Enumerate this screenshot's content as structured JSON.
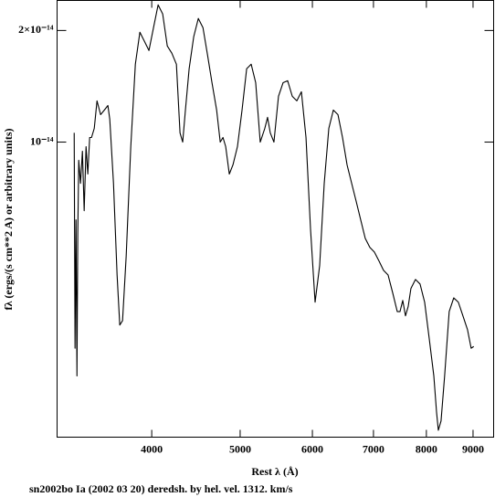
{
  "chart_data": {
    "type": "line",
    "x_label": "Rest λ (Å)",
    "y_label": "fλ (ergs/(s cm**2 A) or arbitrary units)",
    "caption": "sn2002bo Ia (2002 03 20) deredsh. by hel. vel.  1312. km/s",
    "xscale": "log",
    "yscale": "log",
    "xlim": [
      3150,
      9480
    ],
    "ylim": [
      1.6e-15,
      2.41e-14
    ],
    "xticks": [
      4000,
      5000,
      6000,
      7000,
      8000,
      9000
    ],
    "yticks": [
      {
        "value": 1e-14,
        "label": "10⁻¹⁴"
      },
      {
        "value": 2e-14,
        "label": "2×10⁻¹⁴"
      }
    ],
    "color": "#000000",
    "x": [
      3289,
      3296,
      3304,
      3312,
      3319,
      3327,
      3342,
      3358,
      3373,
      3389,
      3404,
      3420,
      3436,
      3460,
      3484,
      3516,
      3549,
      3581,
      3598,
      3632,
      3665,
      3690,
      3716,
      3750,
      3794,
      3838,
      3882,
      3927,
      3972,
      4018,
      4065,
      4112,
      4160,
      4208,
      4257,
      4296,
      4325,
      4355,
      4396,
      4447,
      4499,
      4552,
      4605,
      4657,
      4712,
      4755,
      4788,
      4821,
      4865,
      4910,
      4966,
      5024,
      5083,
      5141,
      5200,
      5260,
      5321,
      5358,
      5395,
      5445,
      5508,
      5572,
      5637,
      5703,
      5769,
      5836,
      5904,
      5972,
      6041,
      6111,
      6182,
      6254,
      6326,
      6400,
      6474,
      6549,
      6625,
      6702,
      6778,
      6856,
      6936,
      7016,
      7098,
      7180,
      7263,
      7348,
      7433,
      7485,
      7537,
      7589,
      7641,
      7694,
      7783,
      7874,
      7965,
      8058,
      8152,
      8208,
      8245,
      8302,
      8377,
      8474,
      8572,
      8672,
      8773,
      8875,
      8957,
      9016
    ],
    "values": [
      1.059e-14,
      2.78e-15,
      6.17e-15,
      2.34e-15,
      5.66e-15,
      8.93e-15,
      7.74e-15,
      9.45e-15,
      6.53e-15,
      9.72e-15,
      8.2e-15,
      1.029e-14,
      1.029e-14,
      1.089e-14,
      1.292e-14,
      1.186e-14,
      1.22e-14,
      1.255e-14,
      1.153e-14,
      7.74e-15,
      4.38e-15,
      3.21e-15,
      3.3e-15,
      4.91e-15,
      9.72e-15,
      1.622e-14,
      1.978e-14,
      1.87e-14,
      1.766e-14,
      2.036e-14,
      2.345e-14,
      2.217e-14,
      1.817e-14,
      1.737e-14,
      1.622e-14,
      1.059e-14,
      1e-14,
      1.22e-14,
      1.577e-14,
      1.923e-14,
      2.155e-14,
      2.036e-14,
      1.717e-14,
      1.446e-14,
      1.22e-14,
      1e-14,
      1.029e-14,
      9.72e-15,
      8.2e-15,
      8.68e-15,
      9.72e-15,
      1.22e-14,
      1.577e-14,
      1.622e-14,
      1.446e-14,
      1e-14,
      1.089e-14,
      1.166e-14,
      1.059e-14,
      1e-14,
      1.329e-14,
      1.446e-14,
      1.464e-14,
      1.329e-14,
      1.292e-14,
      1.367e-14,
      1.029e-14,
      5.82e-15,
      3.7e-15,
      4.64e-15,
      7.74e-15,
      1.089e-14,
      1.22e-14,
      1.186e-14,
      1.029e-14,
      8.68e-15,
      7.74e-15,
      6.91e-15,
      6.17e-15,
      5.5e-15,
      5.2e-15,
      5.05e-15,
      4.78e-15,
      4.51e-15,
      4.38e-15,
      3.92e-15,
      3.49e-15,
      3.49e-15,
      3.74e-15,
      3.4e-15,
      3.6e-15,
      4.03e-15,
      4.26e-15,
      4.14e-15,
      3.7e-15,
      2.95e-15,
      2.34e-15,
      1.87e-15,
      1.67e-15,
      1.77e-15,
      2.34e-15,
      3.49e-15,
      3.8e-15,
      3.7e-15,
      3.4e-15,
      3.12e-15,
      2.78e-15,
      2.81e-15
    ]
  }
}
